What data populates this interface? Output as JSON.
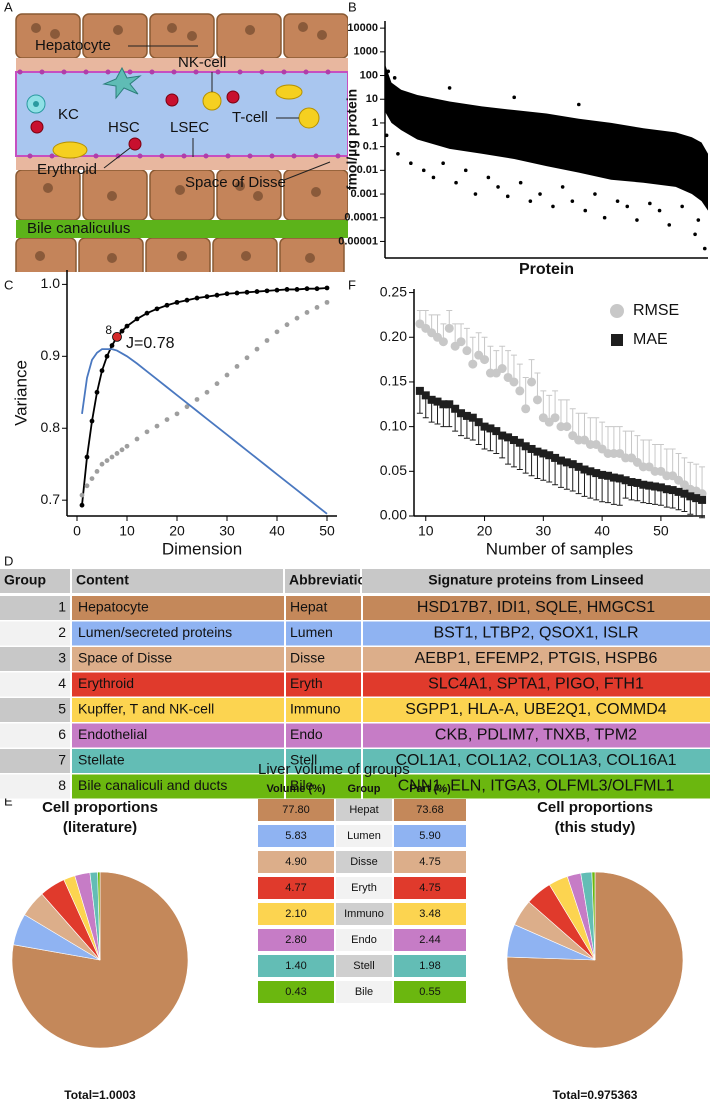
{
  "panel_labels": [
    "A",
    "B",
    "C",
    "D",
    "E",
    "F"
  ],
  "diagram": {
    "labels": [
      "Hepatocyte",
      "NK-cell",
      "KC",
      "HSC",
      "LSEC",
      "T-cell",
      "Erythroid",
      "Space of Disse",
      "Bile canaliculus"
    ]
  },
  "chart_data": [
    {
      "type": "scatter",
      "y_label": "fmol/µg protein",
      "x_label": "Protein",
      "log_y": true,
      "color": "#000000",
      "xlim": [
        0,
        100
      ],
      "ylim": [
        2e-06,
        20000
      ],
      "yticks": [
        10000,
        1000,
        100,
        10,
        1,
        0.1,
        0.01,
        0.001,
        0.0001,
        1e-05
      ],
      "envelope": {
        "x": [
          0,
          2,
          5,
          10,
          20,
          30,
          40,
          50,
          60,
          70,
          80,
          90,
          95,
          98,
          100
        ],
        "upper": [
          300,
          50,
          25,
          15,
          8,
          5,
          3.5,
          2.5,
          1.5,
          1,
          0.6,
          0.4,
          0.25,
          0.15,
          0.05
        ],
        "lower": [
          3,
          1,
          0.5,
          0.2,
          0.08,
          0.05,
          0.03,
          0.015,
          0.008,
          0.004,
          0.003,
          0.002,
          0.001,
          0.0005,
          0.0002
        ]
      },
      "x": [
        1,
        3,
        0.5,
        4,
        8,
        12,
        15,
        18,
        22,
        25,
        28,
        32,
        35,
        38,
        42,
        45,
        48,
        52,
        55,
        58,
        62,
        65,
        68,
        72,
        75,
        78,
        82,
        85,
        88,
        92,
        96,
        99,
        97,
        60,
        40,
        20
      ],
      "y": [
        150,
        80,
        0.3,
        0.05,
        0.02,
        0.01,
        0.005,
        0.02,
        0.003,
        0.01,
        0.001,
        0.005,
        0.002,
        0.0008,
        0.003,
        0.0005,
        0.001,
        0.0003,
        0.002,
        0.0005,
        0.0002,
        0.001,
        0.0001,
        0.0005,
        0.0003,
        8e-05,
        0.0004,
        0.0002,
        5e-05,
        0.0003,
        2e-05,
        5e-06,
        8e-05,
        6,
        12,
        30
      ]
    },
    {
      "type": "line",
      "x_label": "Dimension",
      "y_label": "Variance",
      "xlim": [
        -2,
        52
      ],
      "ylim": [
        0.678,
        1.02
      ],
      "xticks": [
        0,
        10,
        20,
        30,
        40,
        50
      ],
      "yticks": [
        0.7,
        0.8,
        0.9,
        {
          "value": 1,
          "label": "1.0"
        }
      ],
      "x": [
        1,
        2,
        3,
        4,
        5,
        6,
        7,
        8,
        9,
        10,
        12,
        14,
        16,
        18,
        20,
        22,
        24,
        26,
        28,
        30,
        32,
        34,
        36,
        38,
        40,
        42,
        44,
        46,
        48,
        50
      ],
      "series": [
        {
          "color": "#000000",
          "markers": true,
          "line": true,
          "values": [
            0.693,
            0.76,
            0.81,
            0.85,
            0.88,
            0.9,
            0.915,
            0.927,
            0.935,
            0.942,
            0.952,
            0.96,
            0.966,
            0.971,
            0.975,
            0.978,
            0.981,
            0.983,
            0.985,
            0.987,
            0.988,
            0.989,
            0.99,
            0.991,
            0.992,
            0.993,
            0.993,
            0.994,
            0.994,
            0.995
          ]
        },
        {
          "color": "#9e9e9e",
          "markers": true,
          "line": false,
          "values": [
            0.707,
            0.72,
            0.73,
            0.74,
            0.75,
            0.755,
            0.76,
            0.765,
            0.77,
            0.775,
            0.785,
            0.795,
            0.803,
            0.812,
            0.82,
            0.83,
            0.84,
            0.85,
            0.862,
            0.874,
            0.886,
            0.898,
            0.91,
            0.922,
            0.934,
            0.944,
            0.953,
            0.961,
            0.968,
            0.975
          ]
        },
        {
          "color": "#4a78c0",
          "markers": false,
          "line": true,
          "values": [
            0.82,
            0.87,
            0.895,
            0.905,
            0.91,
            0.91,
            0.91,
            0.908,
            0.904,
            0.9,
            0.89,
            0.879,
            0.868,
            0.857,
            0.846,
            0.835,
            0.824,
            0.813,
            0.802,
            0.791,
            0.78,
            0.769,
            0.758,
            0.747,
            0.736,
            0.725,
            0.714,
            0.703,
            0.692,
            0.681
          ]
        }
      ],
      "highlight": {
        "x": 8,
        "label": "8",
        "color": "#d42a2a"
      },
      "annotation": "J=0.78"
    },
    {
      "type": "errorbar",
      "x_label": "Number of samples",
      "legend": "upper right",
      "xlim": [
        8,
        57.5
      ],
      "ylim": [
        0,
        0.254
      ],
      "xticks": [
        10,
        20,
        30,
        40,
        50
      ],
      "yticks": [
        {
          "value": 0,
          "label": "0.00"
        },
        {
          "value": 0.05,
          "label": "0.05"
        },
        {
          "value": 0.1,
          "label": "0.10"
        },
        {
          "value": 0.15,
          "label": "0.15"
        },
        {
          "value": 0.2,
          "label": "0.20"
        },
        {
          "value": 0.25,
          "label": "0.25"
        }
      ],
      "x": [
        9,
        10,
        11,
        12,
        13,
        14,
        15,
        16,
        17,
        18,
        19,
        20,
        21,
        22,
        23,
        24,
        25,
        26,
        27,
        28,
        29,
        30,
        31,
        32,
        33,
        34,
        35,
        36,
        37,
        38,
        39,
        40,
        41,
        42,
        43,
        44,
        45,
        46,
        47,
        48,
        49,
        50,
        51,
        52,
        53,
        54,
        55,
        56,
        57
      ],
      "series": [
        {
          "name": "RMSE",
          "color": "#c8c8c8",
          "marker": "circle",
          "error_direction": "up",
          "values": [
            0.215,
            0.21,
            0.205,
            0.2,
            0.195,
            0.21,
            0.19,
            0.195,
            0.185,
            0.17,
            0.18,
            0.175,
            0.16,
            0.16,
            0.165,
            0.155,
            0.15,
            0.14,
            0.12,
            0.15,
            0.13,
            0.11,
            0.105,
            0.11,
            0.1,
            0.1,
            0.09,
            0.085,
            0.085,
            0.08,
            0.08,
            0.075,
            0.07,
            0.07,
            0.07,
            0.065,
            0.065,
            0.06,
            0.055,
            0.055,
            0.05,
            0.05,
            0.045,
            0.045,
            0.04,
            0.035,
            0.03,
            0.028,
            0.025
          ],
          "errors": [
            0.015,
            0.02,
            0.02,
            0.025,
            0.02,
            0.02,
            0.025,
            0.02,
            0.025,
            0.03,
            0.025,
            0.025,
            0.03,
            0.025,
            0.025,
            0.03,
            0.03,
            0.03,
            0.035,
            0.025,
            0.03,
            0.03,
            0.03,
            0.03,
            0.03,
            0.03,
            0.03,
            0.03,
            0.03,
            0.03,
            0.03,
            0.03,
            0.03,
            0.03,
            0.03,
            0.03,
            0.03,
            0.03,
            0.03,
            0.03,
            0.03,
            0.03,
            0.03,
            0.03,
            0.03,
            0.03,
            0.03,
            0.03,
            0.03
          ]
        },
        {
          "name": "MAE",
          "color": "#1e1e1e",
          "marker": "square",
          "error_direction": "down",
          "values": [
            0.14,
            0.135,
            0.13,
            0.128,
            0.125,
            0.125,
            0.12,
            0.115,
            0.112,
            0.11,
            0.105,
            0.1,
            0.098,
            0.095,
            0.09,
            0.088,
            0.085,
            0.082,
            0.078,
            0.075,
            0.072,
            0.07,
            0.068,
            0.065,
            0.062,
            0.06,
            0.058,
            0.055,
            0.052,
            0.05,
            0.048,
            0.046,
            0.045,
            0.043,
            0.042,
            0.04,
            0.038,
            0.037,
            0.035,
            0.034,
            0.033,
            0.032,
            0.03,
            0.029,
            0.027,
            0.025,
            0.022,
            0.02,
            0.018
          ],
          "errors": [
            0.025,
            0.025,
            0.025,
            0.025,
            0.025,
            0.025,
            0.025,
            0.025,
            0.025,
            0.025,
            0.025,
            0.025,
            0.025,
            0.025,
            0.025,
            0.03,
            0.03,
            0.03,
            0.03,
            0.03,
            0.03,
            0.03,
            0.03,
            0.03,
            0.03,
            0.03,
            0.03,
            0.03,
            0.03,
            0.03,
            0.03,
            0.03,
            0.03,
            0.03,
            0.03,
            0.02,
            0.02,
            0.02,
            0.02,
            0.02,
            0.02,
            0.02,
            0.02,
            0.02,
            0.02,
            0.02,
            0.02,
            0.02,
            0.02
          ]
        }
      ]
    },
    {
      "type": "pie",
      "title": "Cell proportions",
      "subtitle": "(literature)",
      "total_label": "Total=1.0003",
      "categories": [
        "Hepat",
        "Lumen",
        "Disse",
        "Eryth",
        "Immuno",
        "Endo",
        "Stell",
        "Bile"
      ],
      "values": [
        77.8,
        5.83,
        4.9,
        4.77,
        2.1,
        2.8,
        1.4,
        0.43
      ],
      "value_labels": [
        "77.80",
        "5.83",
        "4.90",
        "4.77",
        "2.10",
        "2.80",
        "1.40",
        "0.43"
      ],
      "colors": [
        "#c4885a",
        "#8fb3f2",
        "#dcae8a",
        "#e03a2c",
        "#fcd450",
        "#c67cc6",
        "#63bdb5",
        "#6bb70f"
      ]
    },
    {
      "type": "pie",
      "title": "Cell proportions",
      "subtitle": "(this study)",
      "total_label": "Total=0.975363",
      "categories": [
        "Hepat",
        "Lumen",
        "Disse",
        "Eryth",
        "Immuno",
        "Endo",
        "Stell",
        "Bile"
      ],
      "values": [
        73.68,
        5.9,
        4.75,
        4.75,
        3.48,
        2.44,
        1.98,
        0.55
      ],
      "value_labels": [
        "73.68",
        "5.90",
        "4.75",
        "4.75",
        "3.48",
        "2.44",
        "1.98",
        "0.55"
      ],
      "colors": [
        "#c4885a",
        "#8fb3f2",
        "#dcae8a",
        "#e03a2c",
        "#fcd450",
        "#c67cc6",
        "#63bdb5",
        "#6bb70f"
      ]
    }
  ],
  "table_d": {
    "columns": [
      "Group",
      "Content",
      "Abbreviation",
      "Signature proteins from Linseed"
    ],
    "rows": [
      {
        "group": 1,
        "content": "Hepatocyte",
        "abbreviation": "Hepat",
        "signature": "HSD17B7, IDI1, SQLE, HMGCS1",
        "color": "#c4885a"
      },
      {
        "group": 2,
        "content": "Lumen/secreted proteins",
        "abbreviation": "Lumen",
        "signature": "BST1, LTBP2, QSOX1, ISLR",
        "color": "#8fb3f2"
      },
      {
        "group": 3,
        "content": "Space of Disse",
        "abbreviation": "Disse",
        "signature": "AEBP1, EFEMP2, PTGIS, HSPB6",
        "color": "#dcae8a"
      },
      {
        "group": 4,
        "content": "Erythroid",
        "abbreviation": "Eryth",
        "signature": "SLC4A1, SPTA1, PIGO, FTH1",
        "color": "#e03a2c"
      },
      {
        "group": 5,
        "content": "Kupffer, T and NK-cell",
        "abbreviation": "Immuno",
        "signature": "SGPP1, HLA-A, UBE2Q1, COMMD4",
        "color": "#fcd450"
      },
      {
        "group": 6,
        "content": "Endothelial",
        "abbreviation": "Endo",
        "signature": "CKB, PDLIM7, TNXB, TPM2",
        "color": "#c67cc6"
      },
      {
        "group": 7,
        "content": "Stellate",
        "abbreviation": "Stell",
        "signature": "COL1A1, COL1A2, COL1A3, COL16A1",
        "color": "#63bdb5"
      },
      {
        "group": 8,
        "content": "Bile canaliculi and ducts",
        "abbreviation": "Bile",
        "signature": "CNN1, ELN, ITGA3, OLFML3/OLFML1",
        "color": "#6bb70f"
      }
    ]
  },
  "table_e": {
    "title": "Liver volume of groups",
    "columns": [
      "Volume (%)",
      "Group",
      "Part (%)"
    ]
  }
}
